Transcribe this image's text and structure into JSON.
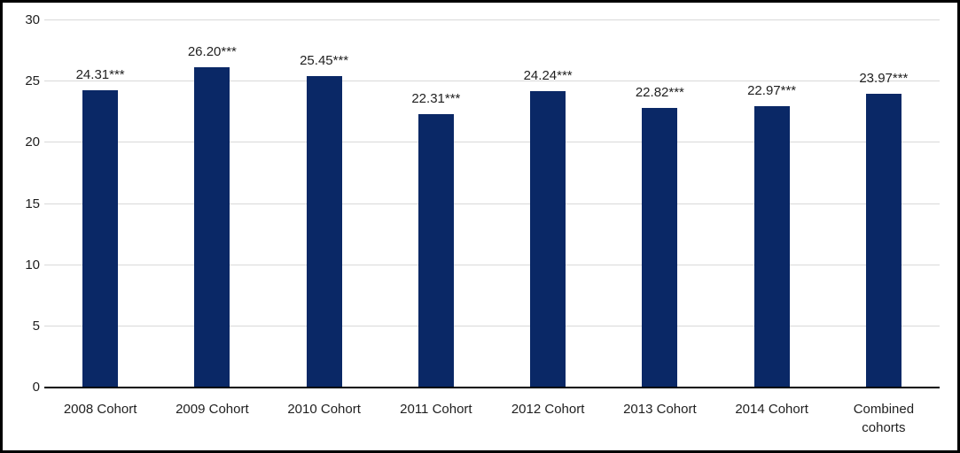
{
  "chart_data": {
    "type": "bar",
    "title": "",
    "xlabel": "",
    "ylabel": "",
    "categories": [
      "2008 Cohort",
      "2009 Cohort",
      "2010 Cohort",
      "2011 Cohort",
      "2012 Cohort",
      "2013 Cohort",
      "2014 Cohort",
      "Combined cohorts"
    ],
    "values": [
      24.31,
      26.2,
      25.45,
      22.31,
      24.24,
      22.82,
      22.97,
      23.97
    ],
    "bar_labels": [
      "24.31***",
      "26.20***",
      "25.45***",
      "22.31***",
      "24.24***",
      "22.82***",
      "22.97***",
      "23.97***"
    ],
    "ylim": [
      0,
      30
    ],
    "yticks": [
      0,
      5,
      10,
      15,
      20,
      25,
      30
    ],
    "grid": true,
    "legend": false,
    "colors": {
      "bar": "#0a2866",
      "gridline": "#d9d9d9",
      "axis_line": "#000000",
      "text": "#1f1f1f",
      "background": "#ffffff",
      "frame_border": "#000000"
    }
  }
}
